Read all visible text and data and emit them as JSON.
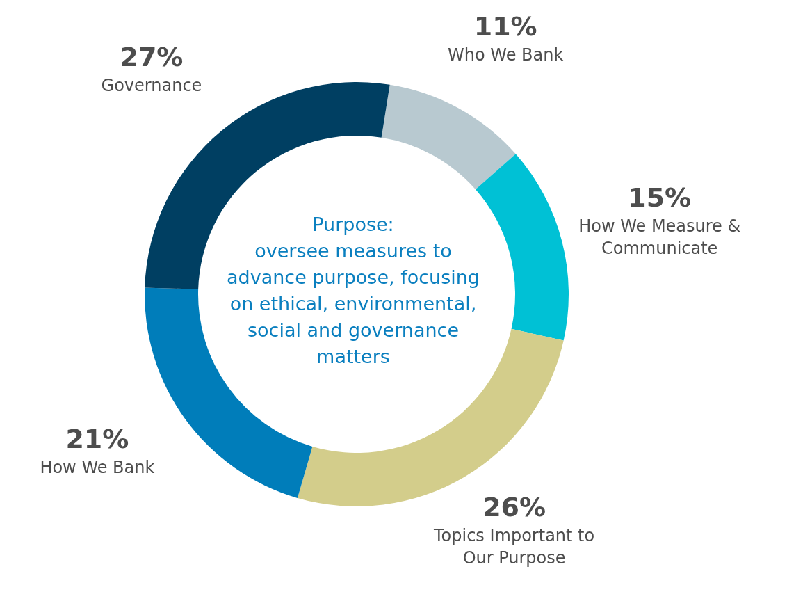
{
  "chart_data": {
    "type": "donut",
    "categories": [
      "Who We Bank",
      "How We Measure & Communicate",
      "Topics Important to Our Purpose",
      "How We Bank",
      "Governance"
    ],
    "values": [
      11,
      15,
      26,
      21,
      27
    ],
    "value_labels": [
      "11%",
      "15%",
      "26%",
      "21%",
      "27%"
    ],
    "colors": [
      "#b8c9d0",
      "#00c1d5",
      "#d3cd8b",
      "#007dba",
      "#003f62"
    ],
    "annotations": [
      "Purpose:\noversee measures to advance purpose, focusing on ethical, environmental, social and governance matters"
    ],
    "legend": false
  }
}
